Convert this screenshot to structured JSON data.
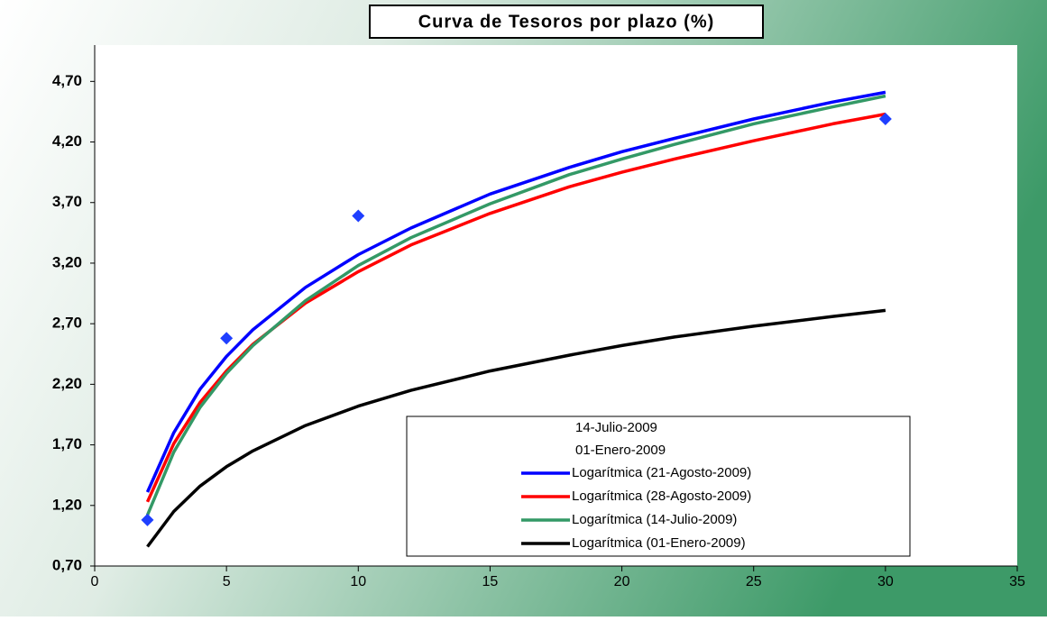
{
  "chart_data": {
    "type": "line",
    "title": "Curva de Tesoros por plazo (%)",
    "x": [
      2,
      3,
      4,
      5,
      6,
      8,
      10,
      12,
      15,
      18,
      20,
      22,
      25,
      28,
      30
    ],
    "series": [
      {
        "name": "Logarítmica (21-Agosto-2009)",
        "color": "#0000ff",
        "values": [
          1.31,
          1.8,
          2.16,
          2.43,
          2.65,
          3.0,
          3.27,
          3.49,
          3.77,
          3.99,
          4.12,
          4.23,
          4.39,
          4.53,
          4.61
        ]
      },
      {
        "name": "Logarítmica (28-Agosto-2009)",
        "color": "#ff0000",
        "values": [
          1.23,
          1.71,
          2.05,
          2.31,
          2.53,
          2.87,
          3.13,
          3.35,
          3.61,
          3.83,
          3.95,
          4.06,
          4.21,
          4.35,
          4.43
        ]
      },
      {
        "name": "Logarítmica (14-Julio-2009)",
        "color": "#339966",
        "values": [
          1.12,
          1.64,
          2.01,
          2.29,
          2.52,
          2.89,
          3.18,
          3.41,
          3.69,
          3.93,
          4.06,
          4.18,
          4.35,
          4.49,
          4.58
        ]
      },
      {
        "name": "Logarítmica (01-Enero-2009)",
        "color": "#000000",
        "values": [
          0.86,
          1.15,
          1.36,
          1.52,
          1.65,
          1.86,
          2.02,
          2.15,
          2.31,
          2.44,
          2.52,
          2.59,
          2.68,
          2.76,
          2.81
        ]
      }
    ],
    "points": {
      "color": "#1f3fff",
      "x": [
        2,
        5,
        10,
        30
      ],
      "values": [
        1.08,
        2.58,
        3.59,
        4.39
      ]
    },
    "legend_text_only": [
      "14-Julio-2009",
      "01-Enero-2009"
    ],
    "xlim": [
      0,
      35
    ],
    "xticks": [
      0,
      5,
      10,
      15,
      20,
      25,
      30,
      35
    ],
    "ylim": [
      0.7,
      5.0
    ],
    "yticks": [
      {
        "value": 0.7,
        "label": "0,70"
      },
      {
        "value": 1.2,
        "label": "1,20"
      },
      {
        "value": 1.7,
        "label": "1,70"
      },
      {
        "value": 2.2,
        "label": "2,20"
      },
      {
        "value": 2.7,
        "label": "2,70"
      },
      {
        "value": 3.2,
        "label": "3,20"
      },
      {
        "value": 3.7,
        "label": "3,70"
      },
      {
        "value": 4.2,
        "label": "4,20"
      },
      {
        "value": 4.7,
        "label": "4,70"
      }
    ]
  }
}
